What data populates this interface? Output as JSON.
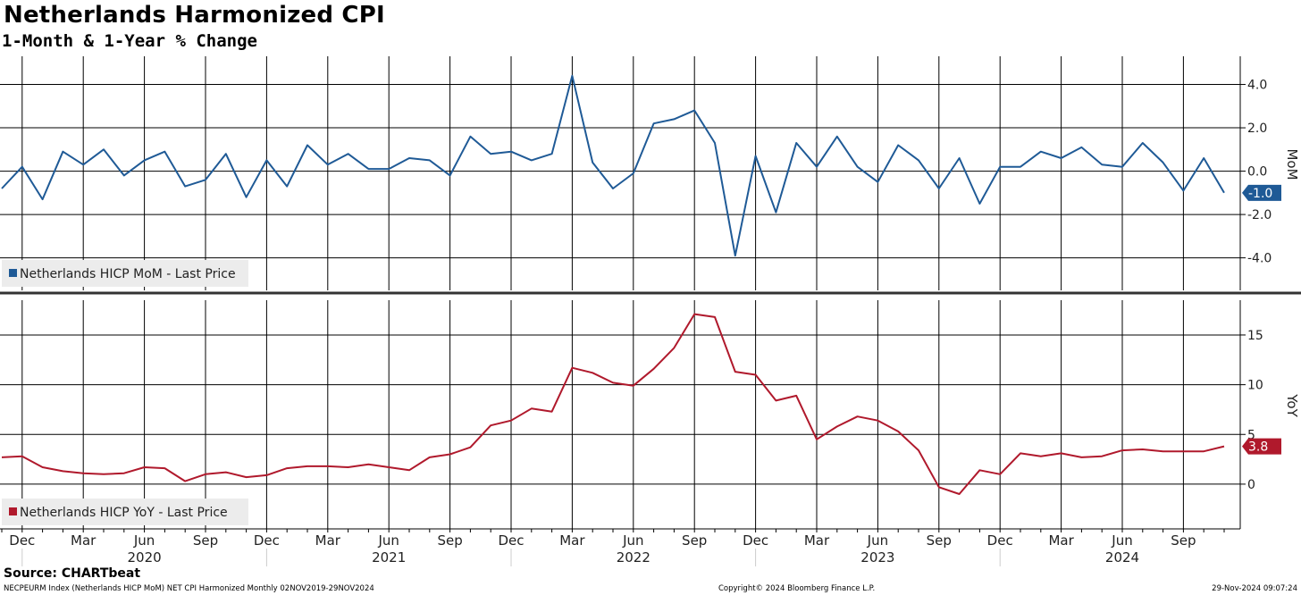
{
  "title": "Netherlands Harmonized CPI",
  "subtitle": "1-Month & 1-Year % Change",
  "source": "Source: CHARTbeat",
  "footer": {
    "left": "NECPEURM Index (Netherlands HICP MoM) NET CPI Harmonized  Monthly 02NOV2019-29NOV2024",
    "center": "Copyright© 2024 Bloomberg Finance L.P.",
    "right": "29-Nov-2024 09:07:24"
  },
  "colors": {
    "mom": "#1f5a96",
    "yoy": "#b0192c",
    "grid": "#000000"
  },
  "chart_data": [
    {
      "type": "line",
      "panel": "top",
      "axis_label": "MoM",
      "ylim": [
        -5.5,
        5.3
      ],
      "yticks": [
        -4.0,
        -2.0,
        0.0,
        2.0,
        4.0
      ],
      "ytick_labels": [
        "-4.0",
        "-2.0",
        "0.0",
        "2.0",
        "4.0"
      ],
      "last_value_label": "-1.0",
      "legend": "Netherlands HICP MoM - Last Price",
      "grid": true,
      "series": [
        {
          "name": "Netherlands HICP MoM - Last Price",
          "x": [
            "2019-11",
            "2019-12",
            "2020-01",
            "2020-02",
            "2020-03",
            "2020-04",
            "2020-05",
            "2020-06",
            "2020-07",
            "2020-08",
            "2020-09",
            "2020-10",
            "2020-11",
            "2020-12",
            "2021-01",
            "2021-02",
            "2021-03",
            "2021-04",
            "2021-05",
            "2021-06",
            "2021-07",
            "2021-08",
            "2021-09",
            "2021-10",
            "2021-11",
            "2021-12",
            "2022-01",
            "2022-02",
            "2022-03",
            "2022-04",
            "2022-05",
            "2022-06",
            "2022-07",
            "2022-08",
            "2022-09",
            "2022-10",
            "2022-11",
            "2022-12",
            "2023-01",
            "2023-02",
            "2023-03",
            "2023-04",
            "2023-05",
            "2023-06",
            "2023-07",
            "2023-08",
            "2023-09",
            "2023-10",
            "2023-11",
            "2023-12",
            "2024-01",
            "2024-02",
            "2024-03",
            "2024-04",
            "2024-05",
            "2024-06",
            "2024-07",
            "2024-08",
            "2024-09",
            "2024-10",
            "2024-11"
          ],
          "values": [
            -0.8,
            0.2,
            -1.3,
            0.9,
            0.3,
            1.0,
            -0.2,
            0.5,
            0.9,
            -0.7,
            -0.4,
            0.8,
            -1.2,
            0.5,
            -0.7,
            1.2,
            0.3,
            0.8,
            0.1,
            0.1,
            0.6,
            0.5,
            -0.2,
            1.6,
            0.8,
            0.9,
            0.5,
            0.8,
            4.4,
            0.4,
            -0.8,
            -0.1,
            2.2,
            2.4,
            2.8,
            1.3,
            -3.9,
            0.7,
            -1.9,
            1.3,
            0.2,
            1.6,
            0.2,
            -0.5,
            1.2,
            0.5,
            -0.8,
            0.6,
            -1.5,
            0.2,
            0.2,
            0.9,
            0.6,
            1.1,
            0.3,
            0.2,
            1.3,
            0.4,
            -0.9,
            0.6,
            -1.0
          ]
        }
      ]
    },
    {
      "type": "line",
      "panel": "bottom",
      "axis_label": "YoY",
      "ylim": [
        -4.5,
        18.5
      ],
      "yticks": [
        0,
        5,
        10,
        15
      ],
      "ytick_labels": [
        "0",
        "5",
        "10",
        "15"
      ],
      "last_value_label": "3.8",
      "legend": "Netherlands HICP YoY - Last Price",
      "grid": true,
      "series": [
        {
          "name": "Netherlands HICP YoY - Last Price",
          "x": [
            "2019-11",
            "2019-12",
            "2020-01",
            "2020-02",
            "2020-03",
            "2020-04",
            "2020-05",
            "2020-06",
            "2020-07",
            "2020-08",
            "2020-09",
            "2020-10",
            "2020-11",
            "2020-12",
            "2021-01",
            "2021-02",
            "2021-03",
            "2021-04",
            "2021-05",
            "2021-06",
            "2021-07",
            "2021-08",
            "2021-09",
            "2021-10",
            "2021-11",
            "2021-12",
            "2022-01",
            "2022-02",
            "2022-03",
            "2022-04",
            "2022-05",
            "2022-06",
            "2022-07",
            "2022-08",
            "2022-09",
            "2022-10",
            "2022-11",
            "2022-12",
            "2023-01",
            "2023-02",
            "2023-03",
            "2023-04",
            "2023-05",
            "2023-06",
            "2023-07",
            "2023-08",
            "2023-09",
            "2023-10",
            "2023-11",
            "2023-12",
            "2024-01",
            "2024-02",
            "2024-03",
            "2024-04",
            "2024-05",
            "2024-06",
            "2024-07",
            "2024-08",
            "2024-09",
            "2024-10",
            "2024-11"
          ],
          "values": [
            2.7,
            2.8,
            1.7,
            1.3,
            1.1,
            1.0,
            1.1,
            1.7,
            1.6,
            0.3,
            1.0,
            1.2,
            0.7,
            0.9,
            1.6,
            1.8,
            1.8,
            1.7,
            2.0,
            1.7,
            1.4,
            2.7,
            3.0,
            3.7,
            5.9,
            6.4,
            7.6,
            7.3,
            11.7,
            11.2,
            10.2,
            9.9,
            11.6,
            13.7,
            17.1,
            16.8,
            11.3,
            11.0,
            8.4,
            8.9,
            4.5,
            5.8,
            6.8,
            6.4,
            5.3,
            3.4,
            -0.3,
            -1.0,
            1.4,
            1.0,
            3.1,
            2.8,
            3.1,
            2.7,
            2.8,
            3.4,
            3.5,
            3.3,
            3.3,
            3.3,
            3.8
          ]
        }
      ]
    }
  ],
  "x_axis": {
    "month_ticks": [
      {
        "label": "Dec",
        "x": "2019-12"
      },
      {
        "label": "Mar",
        "x": "2020-03"
      },
      {
        "label": "Jun",
        "x": "2020-06"
      },
      {
        "label": "Sep",
        "x": "2020-09"
      },
      {
        "label": "Dec",
        "x": "2020-12"
      },
      {
        "label": "Mar",
        "x": "2021-03"
      },
      {
        "label": "Jun",
        "x": "2021-06"
      },
      {
        "label": "Sep",
        "x": "2021-09"
      },
      {
        "label": "Dec",
        "x": "2021-12"
      },
      {
        "label": "Mar",
        "x": "2022-03"
      },
      {
        "label": "Jun",
        "x": "2022-06"
      },
      {
        "label": "Sep",
        "x": "2022-09"
      },
      {
        "label": "Dec",
        "x": "2022-12"
      },
      {
        "label": "Mar",
        "x": "2023-03"
      },
      {
        "label": "Jun",
        "x": "2023-06"
      },
      {
        "label": "Sep",
        "x": "2023-09"
      },
      {
        "label": "Dec",
        "x": "2023-12"
      },
      {
        "label": "Mar",
        "x": "2024-03"
      },
      {
        "label": "Jun",
        "x": "2024-06"
      },
      {
        "label": "Sep",
        "x": "2024-09"
      }
    ],
    "year_labels": [
      {
        "label": "2020",
        "x": "2020-06"
      },
      {
        "label": "2021",
        "x": "2021-06"
      },
      {
        "label": "2022",
        "x": "2022-06"
      },
      {
        "label": "2023",
        "x": "2023-06"
      },
      {
        "label": "2024",
        "x": "2024-06"
      }
    ]
  }
}
